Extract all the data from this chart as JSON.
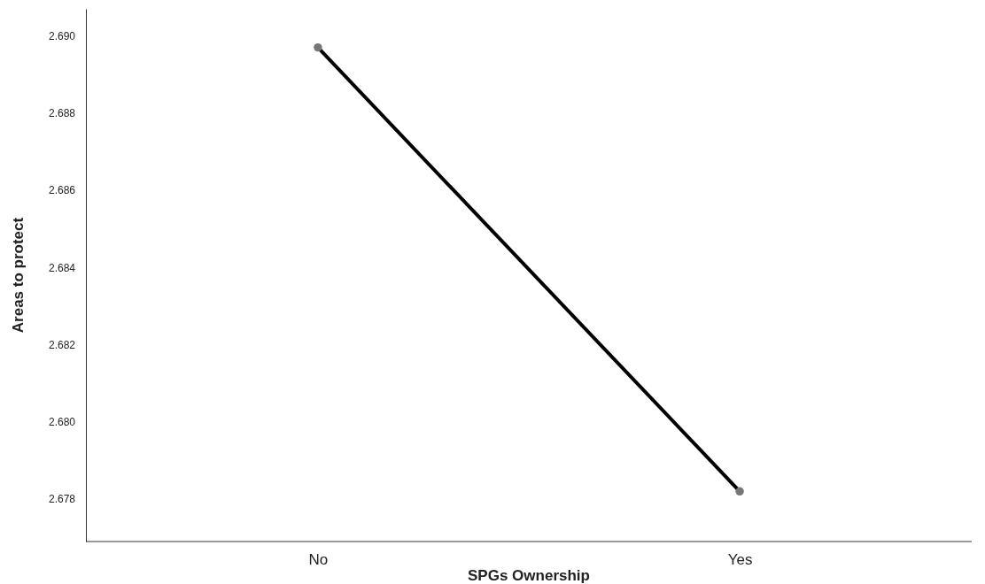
{
  "chart_data": {
    "type": "line",
    "xlabel": "SPGs Ownership",
    "ylabel": "Areas to protect",
    "categories": [
      "No",
      "Yes"
    ],
    "series": [
      {
        "color": "#000000",
        "values": [
          2.6897,
          2.6782
        ]
      }
    ],
    "marker": "circle",
    "ylim": [
      2.6769,
      2.6907
    ],
    "yticks": [
      {
        "value": 2.678,
        "label": "2.678"
      },
      {
        "value": 2.68,
        "label": "2.680"
      },
      {
        "value": 2.682,
        "label": "2.682"
      },
      {
        "value": 2.684,
        "label": "2.684"
      },
      {
        "value": 2.686,
        "label": "2.686"
      },
      {
        "value": 2.688,
        "label": "2.688"
      },
      {
        "value": 2.69,
        "label": "2.690"
      }
    ]
  }
}
